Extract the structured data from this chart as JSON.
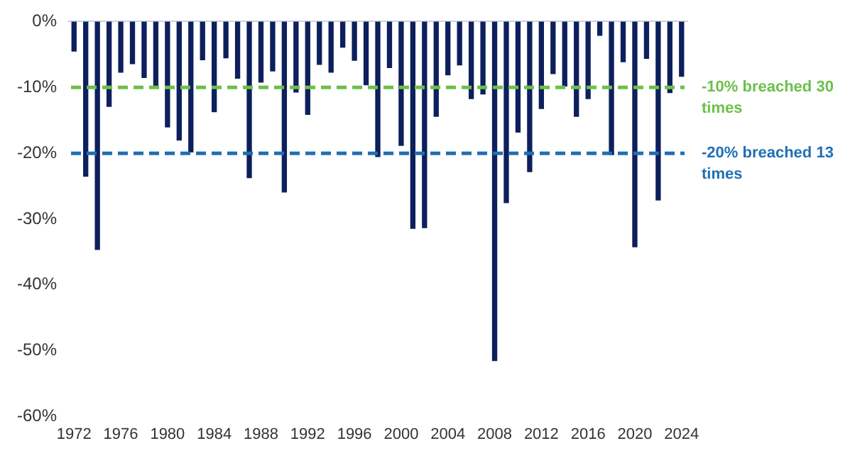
{
  "chart_data": {
    "type": "bar",
    "categories": [
      "1972",
      null,
      null,
      null,
      "1976",
      null,
      null,
      null,
      "1980",
      null,
      null,
      null,
      "1984",
      null,
      null,
      null,
      "1988",
      null,
      null,
      null,
      "1992",
      null,
      null,
      null,
      "1996",
      null,
      null,
      null,
      "2000",
      null,
      null,
      null,
      "2004",
      null,
      null,
      null,
      "2008",
      null,
      null,
      null,
      "2012",
      null,
      null,
      null,
      "2016",
      null,
      null,
      null,
      "2020",
      null,
      null,
      null,
      "2024"
    ],
    "series": [
      {
        "color": "#0d1f5c",
        "values": [
          -4.5,
          -23.5,
          -34.6,
          -12.9,
          -7.7,
          -6.4,
          -8.5,
          -9.8,
          -16.0,
          -18.0,
          -19.8,
          -5.8,
          -13.7,
          -5.5,
          -8.6,
          -23.7,
          -9.2,
          -7.5,
          -25.9,
          -10.7,
          -14.1,
          -6.5,
          -7.7,
          -3.9,
          -5.9,
          -9.6,
          -20.5,
          -7.0,
          -18.8,
          -31.4,
          -31.3,
          -14.4,
          -8.1,
          -6.6,
          -11.7,
          -11.0,
          -51.5,
          -27.5,
          -16.8,
          -22.8,
          -13.2,
          -7.9,
          -9.8,
          -14.4,
          -11.7,
          -2.1,
          -20.2,
          -6.1,
          -34.2,
          -5.6,
          -27.1,
          -10.8,
          -8.3
        ]
      }
    ],
    "ylim": [
      -60,
      0
    ],
    "yticks": [
      {
        "value": -60,
        "label": "-60%"
      },
      {
        "value": -50,
        "label": "-50%"
      },
      {
        "value": -40,
        "label": "-40%"
      },
      {
        "value": -30,
        "label": "-30%"
      },
      {
        "value": -20,
        "label": "-20%"
      },
      {
        "value": -10,
        "label": "-10%"
      },
      {
        "value": 0,
        "label": "0%"
      }
    ],
    "grid": false,
    "legend": false,
    "ref_lines": [
      {
        "axis": "y",
        "value": -10,
        "label": "-10% breached 30 times",
        "color": "#6cc04a",
        "line_style": "dashed"
      },
      {
        "axis": "y",
        "value": -20,
        "label": "-20% breached 13 times",
        "color": "#1f6fb5",
        "line_style": "dashed"
      }
    ]
  }
}
